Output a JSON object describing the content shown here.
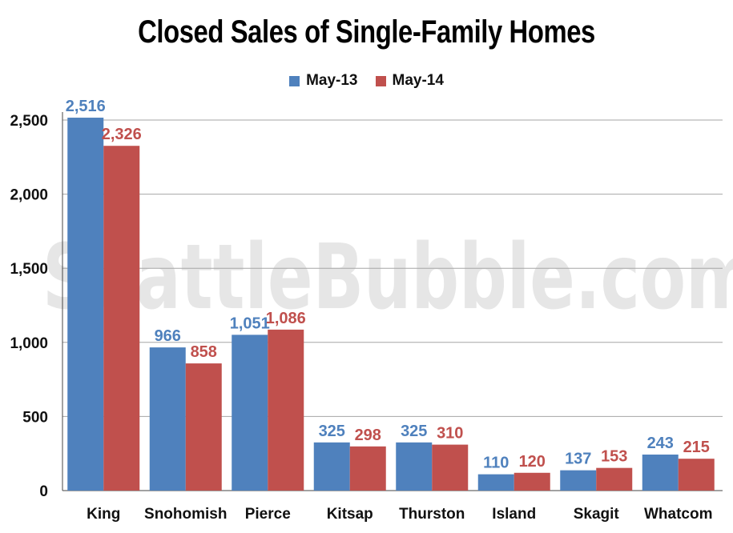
{
  "chart_data": {
    "type": "bar",
    "title": "Closed Sales of Single-Family Homes",
    "watermark": "SeattleBubble.com",
    "categories": [
      "King",
      "Snohomish",
      "Pierce",
      "Kitsap",
      "Thurston",
      "Island",
      "Skagit",
      "Whatcom"
    ],
    "series": [
      {
        "name": "May-13",
        "color": "#4f81bd",
        "label_color": "#4f81bd",
        "values": [
          2516,
          966,
          1051,
          325,
          325,
          110,
          137,
          243
        ],
        "labels": [
          "2,516",
          "966",
          "1,051",
          "325",
          "325",
          "110",
          "137",
          "243"
        ]
      },
      {
        "name": "May-14",
        "color": "#c0504d",
        "label_color": "#c0504d",
        "values": [
          2326,
          858,
          1086,
          298,
          310,
          120,
          153,
          215
        ],
        "labels": [
          "2,326",
          "858",
          "1,086",
          "298",
          "310",
          "120",
          "153",
          "215"
        ]
      }
    ],
    "ylim": [
      0,
      2500
    ],
    "yticks": [
      0,
      500,
      1000,
      1500,
      2000,
      2500
    ],
    "ytick_labels": [
      "0",
      "500",
      "1,000",
      "1,500",
      "2,000",
      "2,500"
    ],
    "grid": true,
    "legend_position": "top-center"
  }
}
